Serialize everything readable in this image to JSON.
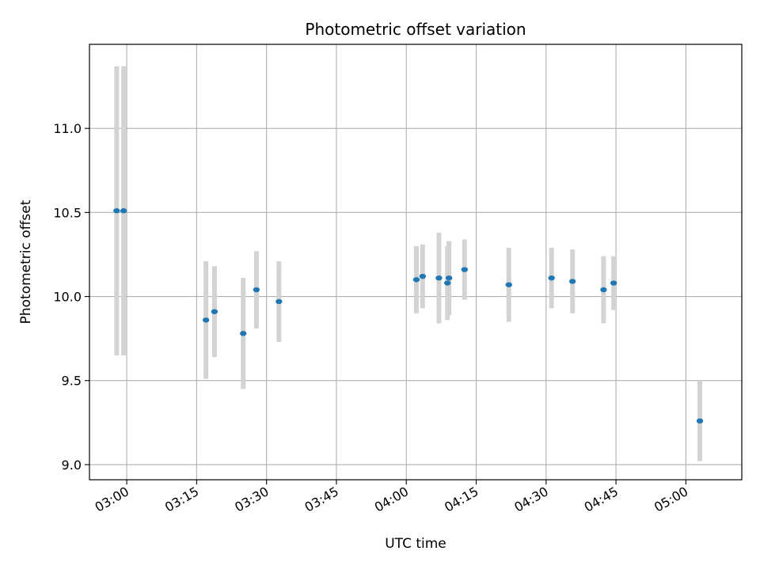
{
  "chart_data": {
    "type": "scatter",
    "title": "Photometric offset variation",
    "xlabel": "UTC time",
    "ylabel": "Photometric offset",
    "x_tick_labels": [
      "03:00",
      "03:15",
      "03:30",
      "03:45",
      "04:00",
      "04:15",
      "04:30",
      "04:45",
      "05:00"
    ],
    "x_ticks": [
      "03:00",
      "03:15",
      "03:30",
      "03:45",
      "04:00",
      "04:15",
      "04:30",
      "04:45",
      "05:00"
    ],
    "y_tick_labels": [
      "9.0",
      "9.5",
      "10.0",
      "10.5",
      "11.0"
    ],
    "y_ticks": [
      9.0,
      9.5,
      10.0,
      10.5,
      11.0
    ],
    "xlim": [
      "02:52",
      "05:12"
    ],
    "ylim": [
      8.91,
      11.5
    ],
    "grid": true,
    "point_color": "#1f77b4",
    "errorbar_color": "#d3d3d3",
    "points": [
      {
        "t": "02:57:50",
        "y": 10.51,
        "err": 0.86
      },
      {
        "t": "02:59:20",
        "y": 10.51,
        "err": 0.86
      },
      {
        "t": "03:17:00",
        "y": 9.86,
        "err": 0.35
      },
      {
        "t": "03:18:50",
        "y": 9.91,
        "err": 0.27
      },
      {
        "t": "03:25:00",
        "y": 9.78,
        "err": 0.33
      },
      {
        "t": "03:27:50",
        "y": 10.04,
        "err": 0.23
      },
      {
        "t": "03:32:40",
        "y": 9.97,
        "err": 0.24
      },
      {
        "t": "04:02:10",
        "y": 10.1,
        "err": 0.2
      },
      {
        "t": "04:03:30",
        "y": 10.12,
        "err": 0.19
      },
      {
        "t": "04:07:00",
        "y": 10.11,
        "err": 0.27
      },
      {
        "t": "04:08:50",
        "y": 10.08,
        "err": 0.22
      },
      {
        "t": "04:09:10",
        "y": 10.11,
        "err": 0.22
      },
      {
        "t": "04:12:30",
        "y": 10.16,
        "err": 0.18
      },
      {
        "t": "04:22:00",
        "y": 10.07,
        "err": 0.22
      },
      {
        "t": "04:31:10",
        "y": 10.11,
        "err": 0.18
      },
      {
        "t": "04:35:40",
        "y": 10.09,
        "err": 0.19
      },
      {
        "t": "04:42:20",
        "y": 10.04,
        "err": 0.2
      },
      {
        "t": "04:44:30",
        "y": 10.08,
        "err": 0.16
      },
      {
        "t": "05:03:00",
        "y": 9.26,
        "err": 0.24
      }
    ]
  }
}
